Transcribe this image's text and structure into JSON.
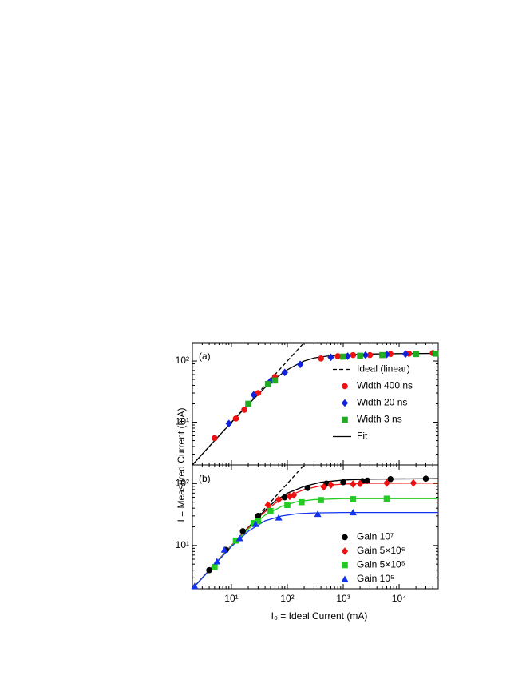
{
  "chart_data": [
    {
      "type": "scatter",
      "label": "(a)",
      "ylabel": "I = Measured Current (mA)",
      "log_x": true,
      "log_y": true,
      "xlim": [
        2,
        50000
      ],
      "ylim": [
        2,
        200
      ],
      "xticks": [
        10,
        100,
        1000,
        10000
      ],
      "yticks": [
        {
          "value": 10,
          "label": "10¹"
        },
        {
          "value": 100,
          "label": "10²"
        }
      ],
      "legend": "center right",
      "series": [
        {
          "name": "Ideal (linear)",
          "color": "#000000",
          "style": "dashed",
          "x": [
            2,
            200
          ],
          "values": [
            2,
            200
          ]
        },
        {
          "name": "Width 400 ns",
          "color": "#ee1111",
          "marker": "circle",
          "x": [
            5,
            12,
            17,
            30,
            60,
            400,
            800,
            1500,
            3000,
            7000,
            15000,
            40000
          ],
          "values": [
            5.5,
            11.5,
            16,
            30,
            55,
            110,
            120,
            125,
            125,
            130,
            132,
            135
          ]
        },
        {
          "name": "Width 20 ns",
          "color": "#1122dd",
          "marker": "diamond",
          "x": [
            9,
            25,
            50,
            90,
            170,
            600,
            1200,
            2500,
            6000,
            13000
          ],
          "values": [
            9.5,
            28,
            47,
            65,
            88,
            115,
            120,
            125,
            128,
            130
          ]
        },
        {
          "name": "Width 3 ns",
          "color": "#22aa22",
          "marker": "square",
          "x": [
            20,
            45,
            60,
            1000,
            2000,
            5000,
            20000,
            45000
          ],
          "values": [
            20,
            42,
            48,
            118,
            122,
            125,
            130,
            132
          ]
        },
        {
          "name": "Fit",
          "color": "#000000",
          "style": "solid",
          "x": [
            2,
            5,
            10,
            20,
            40,
            70,
            100,
            150,
            200,
            300,
            500,
            1000,
            3000,
            10000,
            50000
          ],
          "values": [
            2,
            5,
            9.9,
            19.5,
            37,
            57,
            72,
            88,
            100,
            112,
            120,
            126,
            130,
            132,
            133
          ]
        }
      ]
    },
    {
      "type": "scatter",
      "label": "(b)",
      "xlabel": "I₀ = Ideal Current (mA)",
      "log_x": true,
      "log_y": true,
      "xlim": [
        2,
        50000
      ],
      "ylim": [
        2,
        200
      ],
      "xticks": [
        {
          "value": 10,
          "label": "10¹"
        },
        {
          "value": 100,
          "label": "10²"
        },
        {
          "value": 1000,
          "label": "10³"
        },
        {
          "value": 10000,
          "label": "10⁴"
        }
      ],
      "yticks": [
        {
          "value": 10,
          "label": "10¹"
        },
        {
          "value": 100,
          "label": "10²"
        }
      ],
      "legend": "lower right",
      "series": [
        {
          "color": "#000000",
          "style": "dashed",
          "x": [
            30,
            200
          ],
          "values": [
            30,
            200
          ]
        },
        {
          "color": "#000000",
          "style": "solid",
          "x": [
            2,
            10,
            30,
            60,
            100,
            200,
            400,
            1000,
            3000,
            50000
          ],
          "values": [
            2,
            10,
            29,
            52,
            70,
            90,
            105,
            114,
            118,
            120
          ]
        },
        {
          "color": "#ee1111",
          "style": "solid",
          "x": [
            2,
            10,
            30,
            60,
            100,
            200,
            400,
            1000,
            3000,
            50000
          ],
          "values": [
            2,
            10,
            28,
            48,
            62,
            80,
            92,
            98,
            101,
            102
          ]
        },
        {
          "color": "#22cc22",
          "style": "solid",
          "x": [
            2,
            10,
            20,
            40,
            80,
            150,
            300,
            1000,
            50000
          ],
          "values": [
            2,
            9.8,
            18.5,
            31,
            43,
            51,
            55,
            57,
            57
          ]
        },
        {
          "color": "#1133ee",
          "style": "solid",
          "x": [
            2,
            10,
            20,
            40,
            80,
            150,
            300,
            1000,
            50000
          ],
          "values": [
            2,
            9.6,
            17,
            25,
            30,
            32.5,
            33.5,
            34,
            34
          ]
        },
        {
          "name": "Gain 10⁷",
          "color": "#000000",
          "marker": "circle",
          "x": [
            4,
            8,
            16,
            30,
            90,
            230,
            500,
            1000,
            2200,
            2700,
            7000,
            30000
          ],
          "values": [
            4,
            8.5,
            17,
            30,
            60,
            85,
            100,
            105,
            110,
            112,
            118,
            120
          ]
        },
        {
          "name": "Gain 5×10⁶",
          "color": "#ee1111",
          "marker": "diamond",
          "x": [
            45,
            70,
            110,
            130,
            450,
            600,
            1500,
            2000,
            6000,
            18000
          ],
          "values": [
            45,
            55,
            62,
            65,
            88,
            95,
            98,
            100,
            102,
            102
          ]
        },
        {
          "name": "Gain 5×10⁵",
          "color": "#22cc22",
          "marker": "square",
          "x": [
            5,
            12,
            25,
            30,
            50,
            100,
            180,
            400,
            1500,
            6000
          ],
          "values": [
            4.5,
            12,
            23,
            25,
            36,
            45,
            50,
            54,
            56,
            57
          ]
        },
        {
          "name": "Gain 10⁵",
          "color": "#1133ee",
          "marker": "triangle",
          "x": [
            2.2,
            5.5,
            7.5,
            14,
            27,
            70,
            350,
            1500
          ],
          "values": [
            2.2,
            5.5,
            8.5,
            13,
            22,
            28,
            32,
            34
          ]
        }
      ]
    }
  ]
}
